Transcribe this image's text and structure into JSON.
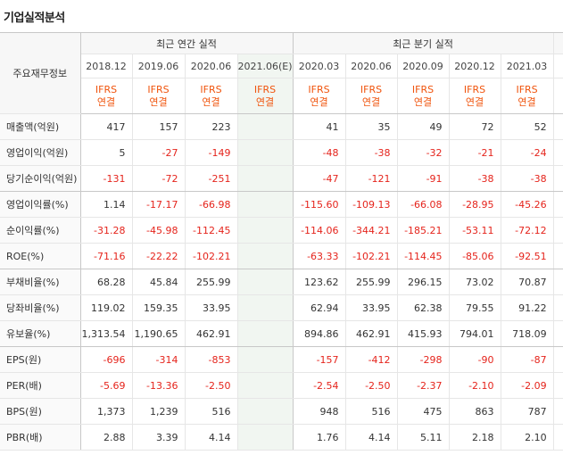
{
  "title": "기업실적분석",
  "table": {
    "label_header": "주요재무정보",
    "group_headers": [
      "최근 연간 실적",
      "최근 분기 실적"
    ],
    "columns": [
      {
        "period": "2018.12",
        "standard": "IFRS",
        "basis": "연결"
      },
      {
        "period": "2019.06",
        "standard": "IFRS",
        "basis": "연결"
      },
      {
        "period": "2020.06",
        "standard": "IFRS",
        "basis": "연결"
      },
      {
        "period": "2021.06(E)",
        "standard": "IFRS",
        "basis": "연결"
      },
      {
        "period": "2020.03",
        "standard": "IFRS",
        "basis": "연결"
      },
      {
        "period": "2020.06",
        "standard": "IFRS",
        "basis": "연결"
      },
      {
        "period": "2020.09",
        "standard": "IFRS",
        "basis": "연결"
      },
      {
        "period": "2020.12",
        "standard": "IFRS",
        "basis": "연결"
      },
      {
        "period": "2021.03",
        "standard": "IFRS",
        "basis": "연결"
      }
    ],
    "rows": [
      {
        "label": "매출액(억원)",
        "values": [
          "417",
          "157",
          "223",
          null,
          "41",
          "35",
          "49",
          "72",
          "52"
        ]
      },
      {
        "label": "영업이익(억원)",
        "values": [
          "5",
          "-27",
          "-149",
          null,
          "-48",
          "-38",
          "-32",
          "-21",
          "-24"
        ]
      },
      {
        "label": "당기순이익(억원)",
        "values": [
          "-131",
          "-72",
          "-251",
          null,
          "-47",
          "-121",
          "-91",
          "-38",
          "-38"
        ]
      },
      {
        "label": "영업이익률(%)",
        "values": [
          "1.14",
          "-17.17",
          "-66.98",
          null,
          "-115.60",
          "-109.13",
          "-66.08",
          "-28.95",
          "-45.26"
        ]
      },
      {
        "label": "순이익률(%)",
        "values": [
          "-31.28",
          "-45.98",
          "-112.45",
          null,
          "-114.06",
          "-344.21",
          "-185.21",
          "-53.11",
          "-72.12"
        ]
      },
      {
        "label": "ROE(%)",
        "values": [
          "-71.16",
          "-22.22",
          "-102.21",
          null,
          "-63.33",
          "-102.21",
          "-114.45",
          "-85.06",
          "-92.51"
        ]
      },
      {
        "label": "부채비율(%)",
        "values": [
          "68.28",
          "45.84",
          "255.99",
          null,
          "123.62",
          "255.99",
          "296.15",
          "73.02",
          "70.87"
        ]
      },
      {
        "label": "당좌비율(%)",
        "values": [
          "119.02",
          "159.35",
          "33.95",
          null,
          "62.94",
          "33.95",
          "62.38",
          "79.55",
          "91.22"
        ]
      },
      {
        "label": "유보율(%)",
        "values": [
          "1,313.54",
          "1,190.65",
          "462.91",
          null,
          "894.86",
          "462.91",
          "415.93",
          "794.01",
          "718.09"
        ]
      },
      {
        "label": "EPS(원)",
        "values": [
          "-696",
          "-314",
          "-853",
          null,
          "-157",
          "-412",
          "-298",
          "-90",
          "-87"
        ]
      },
      {
        "label": "PER(배)",
        "values": [
          "-5.69",
          "-13.36",
          "-2.50",
          null,
          "-2.54",
          "-2.50",
          "-2.37",
          "-2.10",
          "-2.09"
        ]
      },
      {
        "label": "BPS(원)",
        "values": [
          "1,373",
          "1,239",
          "516",
          null,
          "948",
          "516",
          "475",
          "863",
          "787"
        ]
      },
      {
        "label": "PBR(배)",
        "values": [
          "2.88",
          "3.39",
          "4.14",
          null,
          "1.76",
          "4.14",
          "5.11",
          "2.18",
          "2.10"
        ]
      }
    ]
  }
}
